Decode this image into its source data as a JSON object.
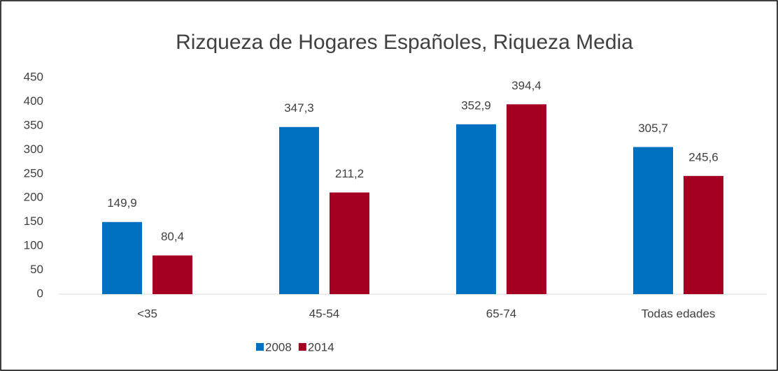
{
  "chart_data": {
    "type": "bar",
    "title": "Rizqueza de Hogares Españoles, Riqueza Media",
    "categories": [
      "<35",
      "45-54",
      "65-74",
      "Todas edades"
    ],
    "series": [
      {
        "name": "2008",
        "color": "#0070c0",
        "values": [
          149.9,
          347.3,
          352.9,
          305.7
        ],
        "value_labels": [
          "149,9",
          "347,3",
          "352,9",
          "305,7"
        ]
      },
      {
        "name": "2014",
        "color": "#a50021",
        "values": [
          80.4,
          211.2,
          394.4,
          245.6
        ],
        "value_labels": [
          "80,4",
          "211,2",
          "394,4",
          "245,6"
        ]
      }
    ],
    "ylim": [
      0,
      450
    ],
    "yticks": [
      0,
      50,
      100,
      150,
      200,
      250,
      300,
      350,
      400,
      450
    ],
    "grid": false,
    "legend": "bottom"
  }
}
